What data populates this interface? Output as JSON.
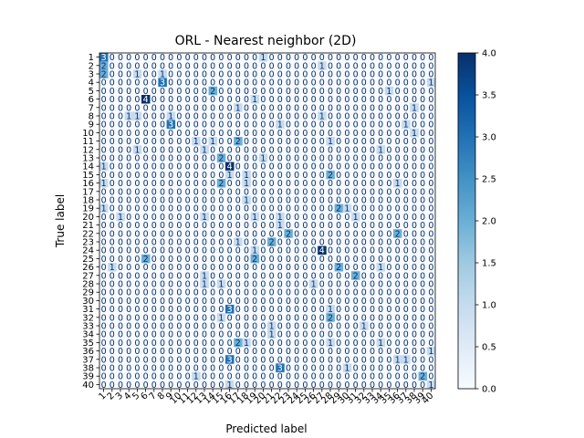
{
  "chart_data": {
    "type": "heatmap",
    "title": "ORL - Nearest neighbor (2D)",
    "xlabel": "Predicted label",
    "ylabel": "True label",
    "labels": [
      "1",
      "2",
      "3",
      "4",
      "5",
      "6",
      "7",
      "8",
      "9",
      "10",
      "11",
      "12",
      "13",
      "14",
      "15",
      "16",
      "17",
      "18",
      "19",
      "20",
      "21",
      "22",
      "23",
      "24",
      "25",
      "26",
      "27",
      "28",
      "29",
      "30",
      "31",
      "32",
      "33",
      "34",
      "35",
      "36",
      "37",
      "38",
      "39",
      "40"
    ],
    "colormap": "Blues",
    "colorbar": {
      "min": 0.0,
      "max": 4.0,
      "ticks": [
        "0.0",
        "0.5",
        "1.0",
        "1.5",
        "2.0",
        "2.5",
        "3.0",
        "3.5",
        "4.0"
      ]
    },
    "cells": [
      [
        1,
        1,
        3
      ],
      [
        1,
        20,
        1
      ],
      [
        2,
        1,
        2
      ],
      [
        2,
        27,
        1
      ],
      [
        3,
        1,
        2
      ],
      [
        3,
        5,
        1
      ],
      [
        3,
        8,
        1
      ],
      [
        4,
        8,
        3
      ],
      [
        4,
        40,
        1
      ],
      [
        5,
        14,
        2
      ],
      [
        5,
        35,
        1
      ],
      [
        6,
        6,
        4
      ],
      [
        6,
        19,
        1
      ],
      [
        7,
        17,
        1
      ],
      [
        7,
        38,
        1
      ],
      [
        8,
        4,
        1
      ],
      [
        8,
        5,
        1
      ],
      [
        8,
        9,
        1
      ],
      [
        8,
        27,
        1
      ],
      [
        9,
        9,
        3
      ],
      [
        9,
        22,
        1
      ],
      [
        9,
        37,
        1
      ],
      [
        10,
        38,
        1
      ],
      [
        11,
        12,
        1
      ],
      [
        11,
        14,
        1
      ],
      [
        11,
        17,
        2
      ],
      [
        11,
        28,
        1
      ],
      [
        12,
        5,
        1
      ],
      [
        12,
        13,
        1
      ],
      [
        12,
        34,
        1
      ],
      [
        13,
        15,
        2
      ],
      [
        13,
        20,
        1
      ],
      [
        14,
        1,
        1
      ],
      [
        14,
        16,
        4
      ],
      [
        15,
        16,
        1
      ],
      [
        15,
        18,
        1
      ],
      [
        15,
        28,
        2
      ],
      [
        16,
        1,
        1
      ],
      [
        16,
        15,
        2
      ],
      [
        16,
        18,
        1
      ],
      [
        16,
        36,
        1
      ],
      [
        18,
        18,
        1
      ],
      [
        19,
        1,
        1
      ],
      [
        19,
        29,
        2
      ],
      [
        19,
        30,
        1
      ],
      [
        20,
        3,
        1
      ],
      [
        20,
        13,
        1
      ],
      [
        20,
        19,
        1
      ],
      [
        20,
        22,
        1
      ],
      [
        20,
        31,
        1
      ],
      [
        21,
        22,
        1
      ],
      [
        22,
        23,
        2
      ],
      [
        22,
        36,
        2
      ],
      [
        23,
        17,
        1
      ],
      [
        23,
        21,
        2
      ],
      [
        24,
        19,
        1
      ],
      [
        24,
        27,
        4
      ],
      [
        25,
        6,
        2
      ],
      [
        25,
        19,
        2
      ],
      [
        26,
        2,
        1
      ],
      [
        26,
        29,
        2
      ],
      [
        26,
        34,
        1
      ],
      [
        27,
        13,
        1
      ],
      [
        27,
        31,
        2
      ],
      [
        28,
        13,
        1
      ],
      [
        28,
        15,
        1
      ],
      [
        28,
        26,
        1
      ],
      [
        31,
        16,
        3
      ],
      [
        31,
        28,
        1
      ],
      [
        32,
        15,
        1
      ],
      [
        32,
        28,
        2
      ],
      [
        33,
        21,
        1
      ],
      [
        33,
        32,
        1
      ],
      [
        34,
        21,
        1
      ],
      [
        35,
        17,
        2
      ],
      [
        35,
        18,
        1
      ],
      [
        35,
        28,
        1
      ],
      [
        35,
        34,
        1
      ],
      [
        36,
        40,
        1
      ],
      [
        37,
        16,
        3
      ],
      [
        37,
        36,
        1
      ],
      [
        37,
        37,
        1
      ],
      [
        38,
        22,
        3
      ],
      [
        38,
        30,
        1
      ],
      [
        39,
        12,
        1
      ],
      [
        39,
        39,
        2
      ],
      [
        40,
        16,
        1
      ],
      [
        40,
        40,
        1
      ]
    ]
  }
}
